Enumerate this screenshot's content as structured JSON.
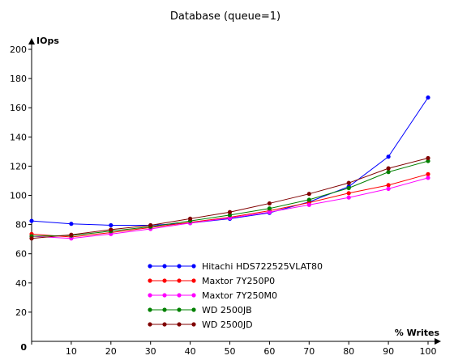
{
  "chart_data": {
    "type": "line",
    "title": "Database (queue=1)",
    "xlabel": "% Writes",
    "ylabel": "IOps",
    "x": [
      0,
      10,
      20,
      30,
      40,
      50,
      60,
      70,
      80,
      90,
      100
    ],
    "xlim": [
      0,
      100
    ],
    "ylim": [
      0,
      200
    ],
    "x_ticks": [
      0,
      10,
      20,
      30,
      40,
      50,
      60,
      70,
      80,
      90,
      100
    ],
    "y_ticks": [
      0,
      20,
      40,
      60,
      80,
      100,
      120,
      140,
      160,
      180,
      200
    ],
    "grid": false,
    "legend_position": "bottom-center",
    "series": [
      {
        "name": "Hitachi HDS722525VLAT80",
        "color": "#0000ff",
        "values": [
          82.5,
          80.5,
          79.5,
          79.5,
          81,
          84,
          88,
          95.5,
          106,
          126.5,
          167
        ]
      },
      {
        "name": "Maxtor 7Y250P0",
        "color": "#ff0000",
        "values": [
          73.5,
          71.5,
          74.5,
          78,
          81.5,
          85,
          89.5,
          95,
          101.5,
          107,
          114.5
        ]
      },
      {
        "name": "Maxtor 7Y250M0",
        "color": "#ff00ff",
        "values": [
          72,
          70.5,
          73.5,
          77,
          81,
          84.5,
          88.5,
          93.5,
          98.5,
          104.5,
          112
        ]
      },
      {
        "name": "WD 2500JB",
        "color": "#008000",
        "values": [
          72,
          72.5,
          75.5,
          78.5,
          82.5,
          86.5,
          91,
          97,
          105,
          116,
          123.5
        ]
      },
      {
        "name": "WD 2500JD",
        "color": "#800000",
        "values": [
          70.5,
          73,
          76.5,
          79.5,
          84,
          88.5,
          94.5,
          101,
          108.5,
          118.5,
          125.5
        ]
      }
    ]
  }
}
